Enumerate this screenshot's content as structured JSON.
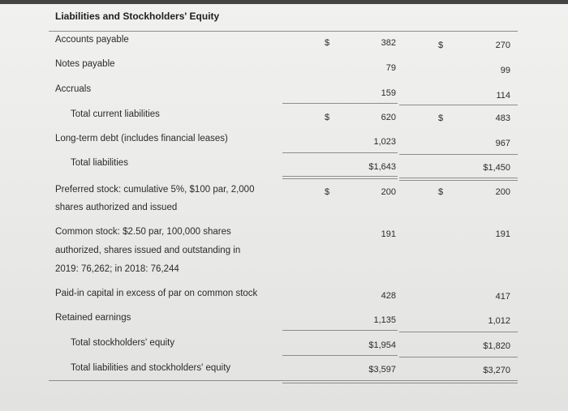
{
  "title": "Liabilities and Stockholders' Equity",
  "rows": [
    {
      "label": "Accounts payable",
      "v1": "382",
      "v1_dollar": "$",
      "v2": "270",
      "v2_dollar": "$"
    },
    {
      "label": "Notes payable",
      "v1": "79",
      "v2": "99"
    },
    {
      "label": "Accruals",
      "v1": "159",
      "v2": "114"
    },
    {
      "label": "Total current liabilities",
      "v1": "620",
      "v1_dollar": "$",
      "v2": "483",
      "v2_dollar": "$"
    },
    {
      "label": "Long-term debt (includes financial leases)",
      "v1": "1,023",
      "v2": "967"
    },
    {
      "label": "Total liabilities",
      "v1": "$1,643",
      "v2": "$1,450"
    },
    {
      "label_lines": [
        "Preferred stock: cumulative 5%, $100 par, 2,000",
        "shares authorized and issued"
      ],
      "v1": "200",
      "v1_dollar": "$",
      "v2": "200",
      "v2_dollar": "$"
    },
    {
      "label_lines": [
        "Common stock: $2.50 par, 100,000 shares",
        "authorized, shares issued and outstanding in",
        "2019: 76,262; in 2018: 76,244"
      ],
      "v1": "191",
      "v2": "191"
    },
    {
      "label": "Paid-in capital in excess of par on common stock",
      "v1": "428",
      "v2": "417"
    },
    {
      "label": "Retained earnings",
      "v1": "1,135",
      "v2": "1,012"
    },
    {
      "label": "Total stockholders' equity",
      "v1": "$1,954",
      "v2": "$1,820"
    },
    {
      "label": "Total liabilities and stockholders' equity",
      "v1": "$3,597",
      "v2": "$3,270"
    }
  ]
}
